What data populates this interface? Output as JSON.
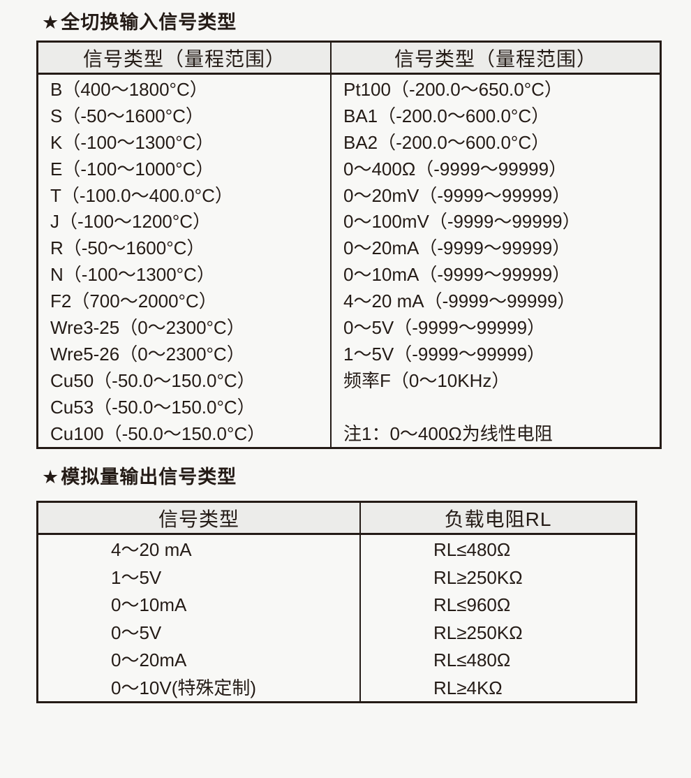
{
  "theme": {
    "page_bg": "#f7f7f5",
    "body_bg": "#f8f8f6",
    "header_bg": "#ececea",
    "border": "#241b16",
    "text": "#241b16"
  },
  "input_section": {
    "star": "★",
    "title": "全切换输入信号类型",
    "header_left": "信号类型（量程范围）",
    "header_right": "信号类型（量程范围）",
    "left_column": [
      "B（400～1800°C）",
      "S（-50～1600°C）",
      "K（-100～1300°C）",
      "E（-100～1000°C）",
      "T（-100.0～400.0°C）",
      "J（-100～1200°C）",
      "R（-50～1600°C）",
      "N（-100～1300°C）",
      "F2（700～2000°C）",
      "Wre3-25（0～2300°C）",
      "Wre5-26（0～2300°C）",
      "Cu50（-50.0～150.0°C）",
      "Cu53（-50.0～150.0°C）",
      "Cu100（-50.0～150.0°C）"
    ],
    "right_column": [
      "Pt100（-200.0～650.0°C）",
      "BA1（-200.0～600.0°C）",
      "BA2（-200.0～600.0°C）",
      "0～400Ω（-9999～99999）",
      "0～20mV（-9999～99999）",
      "0～100mV（-9999～99999）",
      "0～20mA（-9999～99999）",
      "0～10mA（-9999～99999）",
      "4～20 mA（-9999～99999）",
      "0～5V（-9999～99999）",
      "1～5V（-9999～99999）",
      "频率F（0～10KHz）",
      "",
      "注1：0～400Ω为线性电阻"
    ]
  },
  "output_section": {
    "star": "★",
    "title": "模拟量输出信号类型",
    "header_left": "信号类型",
    "header_right": "负载电阻RL",
    "left_column": [
      "4～20 mA",
      "1～5V",
      "0～10mA",
      "0～5V",
      "0～20mA",
      "0～10V(特殊定制)"
    ],
    "right_column": [
      "RL≤480Ω",
      "RL≥250KΩ",
      "RL≤960Ω",
      "RL≥250KΩ",
      "RL≤480Ω",
      "RL≥4KΩ"
    ]
  }
}
